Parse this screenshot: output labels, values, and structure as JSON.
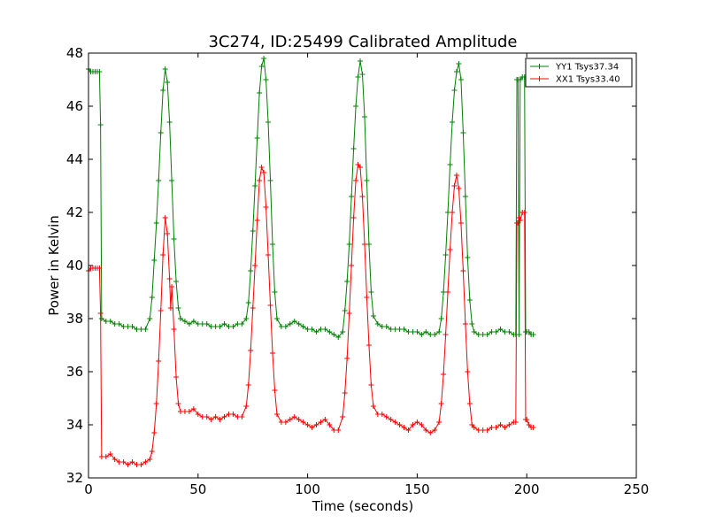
{
  "chart_data": {
    "type": "line",
    "title": "3C274, ID:25499 Calibrated Amplitude",
    "xlabel": "Time (seconds)",
    "ylabel": "Power in Kelvin",
    "xlim": [
      0,
      250
    ],
    "ylim": [
      32,
      48
    ],
    "xticks": [
      "0",
      "50",
      "100",
      "150",
      "200",
      "250"
    ],
    "yticks": [
      "32",
      "34",
      "36",
      "38",
      "40",
      "42",
      "44",
      "46",
      "48"
    ],
    "grid": false,
    "legend_position": "top-right",
    "marker": "+",
    "series": [
      {
        "name": "YY1 Tsys37.34",
        "color": "#008000",
        "points": [
          [
            0,
            47.4
          ],
          [
            1,
            47.3
          ],
          [
            2,
            47.3
          ],
          [
            3,
            47.3
          ],
          [
            4,
            47.3
          ],
          [
            5,
            47.3
          ],
          [
            5.5,
            45.3
          ],
          [
            6,
            38.0
          ],
          [
            8,
            37.9
          ],
          [
            10,
            37.9
          ],
          [
            12,
            37.8
          ],
          [
            14,
            37.8
          ],
          [
            16,
            37.7
          ],
          [
            18,
            37.7
          ],
          [
            20,
            37.7
          ],
          [
            22,
            37.6
          ],
          [
            24,
            37.6
          ],
          [
            26,
            37.6
          ],
          [
            28,
            38.0
          ],
          [
            29,
            38.8
          ],
          [
            30,
            40.2
          ],
          [
            31,
            41.6
          ],
          [
            32,
            43.2
          ],
          [
            33,
            45.0
          ],
          [
            34,
            46.6
          ],
          [
            35,
            47.4
          ],
          [
            36,
            46.9
          ],
          [
            37,
            45.4
          ],
          [
            38,
            43.2
          ],
          [
            39,
            41.0
          ],
          [
            40,
            39.4
          ],
          [
            41,
            38.4
          ],
          [
            42,
            38.0
          ],
          [
            44,
            37.9
          ],
          [
            46,
            37.8
          ],
          [
            48,
            37.9
          ],
          [
            50,
            37.8
          ],
          [
            52,
            37.8
          ],
          [
            54,
            37.8
          ],
          [
            56,
            37.7
          ],
          [
            58,
            37.7
          ],
          [
            60,
            37.7
          ],
          [
            62,
            37.8
          ],
          [
            64,
            37.7
          ],
          [
            66,
            37.7
          ],
          [
            68,
            37.8
          ],
          [
            70,
            37.8
          ],
          [
            72,
            38.0
          ],
          [
            73,
            38.6
          ],
          [
            74,
            39.8
          ],
          [
            75,
            41.3
          ],
          [
            76,
            43.0
          ],
          [
            77,
            44.8
          ],
          [
            78,
            46.5
          ],
          [
            79,
            47.5
          ],
          [
            80,
            47.8
          ],
          [
            81,
            47.0
          ],
          [
            82,
            45.4
          ],
          [
            83,
            43.2
          ],
          [
            84,
            40.8
          ],
          [
            85,
            39.0
          ],
          [
            86,
            38.0
          ],
          [
            88,
            37.7
          ],
          [
            90,
            37.7
          ],
          [
            92,
            37.8
          ],
          [
            94,
            37.9
          ],
          [
            96,
            37.8
          ],
          [
            98,
            37.7
          ],
          [
            100,
            37.6
          ],
          [
            102,
            37.6
          ],
          [
            104,
            37.5
          ],
          [
            106,
            37.6
          ],
          [
            108,
            37.6
          ],
          [
            110,
            37.5
          ],
          [
            112,
            37.4
          ],
          [
            114,
            37.3
          ],
          [
            116,
            37.5
          ],
          [
            117,
            38.3
          ],
          [
            118,
            39.4
          ],
          [
            119,
            40.8
          ],
          [
            120,
            42.6
          ],
          [
            121,
            44.4
          ],
          [
            122,
            46.0
          ],
          [
            123,
            47.1
          ],
          [
            124,
            47.7
          ],
          [
            125,
            47.2
          ],
          [
            126,
            45.6
          ],
          [
            127,
            43.2
          ],
          [
            128,
            40.8
          ],
          [
            129,
            39.0
          ],
          [
            130,
            38.1
          ],
          [
            132,
            37.8
          ],
          [
            134,
            37.7
          ],
          [
            136,
            37.7
          ],
          [
            138,
            37.6
          ],
          [
            140,
            37.6
          ],
          [
            142,
            37.6
          ],
          [
            144,
            37.6
          ],
          [
            146,
            37.5
          ],
          [
            148,
            37.5
          ],
          [
            150,
            37.5
          ],
          [
            152,
            37.4
          ],
          [
            154,
            37.5
          ],
          [
            156,
            37.4
          ],
          [
            158,
            37.4
          ],
          [
            160,
            37.5
          ],
          [
            161,
            38.0
          ],
          [
            162,
            39.0
          ],
          [
            163,
            40.4
          ],
          [
            164,
            42.0
          ],
          [
            165,
            43.8
          ],
          [
            166,
            45.4
          ],
          [
            167,
            46.6
          ],
          [
            168,
            47.3
          ],
          [
            169,
            47.6
          ],
          [
            170,
            47.0
          ],
          [
            171,
            45.0
          ],
          [
            172,
            42.6
          ],
          [
            173,
            40.3
          ],
          [
            174,
            38.7
          ],
          [
            175,
            37.8
          ],
          [
            176,
            37.5
          ],
          [
            178,
            37.4
          ],
          [
            180,
            37.4
          ],
          [
            182,
            37.4
          ],
          [
            184,
            37.5
          ],
          [
            186,
            37.5
          ],
          [
            188,
            37.6
          ],
          [
            190,
            37.5
          ],
          [
            192,
            37.5
          ],
          [
            194,
            37.4
          ],
          [
            195,
            37.4
          ],
          [
            195.5,
            47.0
          ],
          [
            196,
            47.0
          ],
          [
            196.5,
            37.4
          ],
          [
            197,
            47.0
          ],
          [
            198,
            47.1
          ],
          [
            199,
            47.1
          ],
          [
            199.5,
            37.5
          ],
          [
            200,
            37.5
          ],
          [
            201,
            37.5
          ],
          [
            202,
            37.4
          ],
          [
            203,
            37.4
          ]
        ]
      },
      {
        "name": "XX1 Tsys33.40",
        "color": "#ff0000",
        "points": [
          [
            0,
            39.8
          ],
          [
            1,
            39.9
          ],
          [
            2,
            39.9
          ],
          [
            3,
            39.9
          ],
          [
            4,
            39.9
          ],
          [
            5,
            39.9
          ],
          [
            5.5,
            38.2
          ],
          [
            6,
            32.8
          ],
          [
            8,
            32.8
          ],
          [
            10,
            32.9
          ],
          [
            12,
            32.7
          ],
          [
            14,
            32.6
          ],
          [
            16,
            32.6
          ],
          [
            18,
            32.5
          ],
          [
            20,
            32.6
          ],
          [
            22,
            32.5
          ],
          [
            24,
            32.5
          ],
          [
            26,
            32.6
          ],
          [
            28,
            32.7
          ],
          [
            29,
            33.0
          ],
          [
            30,
            33.7
          ],
          [
            31,
            34.8
          ],
          [
            32,
            36.4
          ],
          [
            33,
            38.3
          ],
          [
            34,
            40.4
          ],
          [
            35,
            41.8
          ],
          [
            36,
            41.2
          ],
          [
            37,
            39.5
          ],
          [
            37.5,
            38.4
          ],
          [
            38,
            39.2
          ],
          [
            39,
            37.6
          ],
          [
            40,
            35.8
          ],
          [
            41,
            34.8
          ],
          [
            42,
            34.5
          ],
          [
            44,
            34.5
          ],
          [
            46,
            34.5
          ],
          [
            48,
            34.6
          ],
          [
            50,
            34.4
          ],
          [
            52,
            34.3
          ],
          [
            54,
            34.3
          ],
          [
            56,
            34.2
          ],
          [
            58,
            34.3
          ],
          [
            60,
            34.2
          ],
          [
            62,
            34.3
          ],
          [
            64,
            34.4
          ],
          [
            66,
            34.4
          ],
          [
            68,
            34.3
          ],
          [
            70,
            34.3
          ],
          [
            72,
            34.7
          ],
          [
            73,
            35.5
          ],
          [
            74,
            36.8
          ],
          [
            75,
            38.4
          ],
          [
            76,
            40.0
          ],
          [
            77,
            41.7
          ],
          [
            78,
            43.2
          ],
          [
            79,
            43.7
          ],
          [
            80,
            43.5
          ],
          [
            81,
            42.2
          ],
          [
            82,
            40.4
          ],
          [
            83,
            38.5
          ],
          [
            84,
            36.7
          ],
          [
            85,
            35.3
          ],
          [
            86,
            34.4
          ],
          [
            88,
            34.1
          ],
          [
            90,
            34.1
          ],
          [
            92,
            34.2
          ],
          [
            94,
            34.3
          ],
          [
            96,
            34.2
          ],
          [
            98,
            34.1
          ],
          [
            100,
            34.0
          ],
          [
            102,
            33.9
          ],
          [
            104,
            34.0
          ],
          [
            106,
            34.1
          ],
          [
            108,
            34.2
          ],
          [
            110,
            34.0
          ],
          [
            112,
            33.8
          ],
          [
            114,
            33.8
          ],
          [
            116,
            34.3
          ],
          [
            117,
            35.2
          ],
          [
            118,
            36.5
          ],
          [
            119,
            38.2
          ],
          [
            120,
            40.0
          ],
          [
            121,
            41.8
          ],
          [
            122,
            43.2
          ],
          [
            123,
            43.8
          ],
          [
            124,
            43.7
          ],
          [
            125,
            42.6
          ],
          [
            126,
            40.8
          ],
          [
            127,
            38.8
          ],
          [
            128,
            37.0
          ],
          [
            129,
            35.5
          ],
          [
            130,
            34.7
          ],
          [
            132,
            34.4
          ],
          [
            134,
            34.4
          ],
          [
            136,
            34.3
          ],
          [
            138,
            34.2
          ],
          [
            140,
            34.1
          ],
          [
            142,
            34.0
          ],
          [
            144,
            33.9
          ],
          [
            146,
            33.8
          ],
          [
            148,
            34.0
          ],
          [
            150,
            34.1
          ],
          [
            152,
            34.0
          ],
          [
            154,
            33.8
          ],
          [
            156,
            33.7
          ],
          [
            158,
            33.8
          ],
          [
            160,
            34.1
          ],
          [
            161,
            34.8
          ],
          [
            162,
            35.9
          ],
          [
            163,
            37.4
          ],
          [
            164,
            39.0
          ],
          [
            165,
            40.6
          ],
          [
            166,
            42.0
          ],
          [
            167,
            43.0
          ],
          [
            168,
            43.4
          ],
          [
            169,
            42.9
          ],
          [
            170,
            41.6
          ],
          [
            171,
            39.8
          ],
          [
            172,
            37.8
          ],
          [
            173,
            36.0
          ],
          [
            174,
            34.8
          ],
          [
            175,
            34.0
          ],
          [
            176,
            33.9
          ],
          [
            178,
            33.8
          ],
          [
            180,
            33.8
          ],
          [
            182,
            33.8
          ],
          [
            184,
            33.9
          ],
          [
            186,
            33.9
          ],
          [
            188,
            34.0
          ],
          [
            190,
            33.9
          ],
          [
            192,
            34.0
          ],
          [
            194,
            34.1
          ],
          [
            195,
            34.1
          ],
          [
            195.5,
            41.6
          ],
          [
            196,
            41.6
          ],
          [
            196.5,
            41.8
          ],
          [
            197,
            41.7
          ],
          [
            198,
            42.0
          ],
          [
            199,
            42.0
          ],
          [
            199.5,
            34.2
          ],
          [
            200,
            34.2
          ],
          [
            201,
            34.0
          ],
          [
            202,
            33.9
          ],
          [
            203,
            33.9
          ]
        ]
      }
    ]
  }
}
